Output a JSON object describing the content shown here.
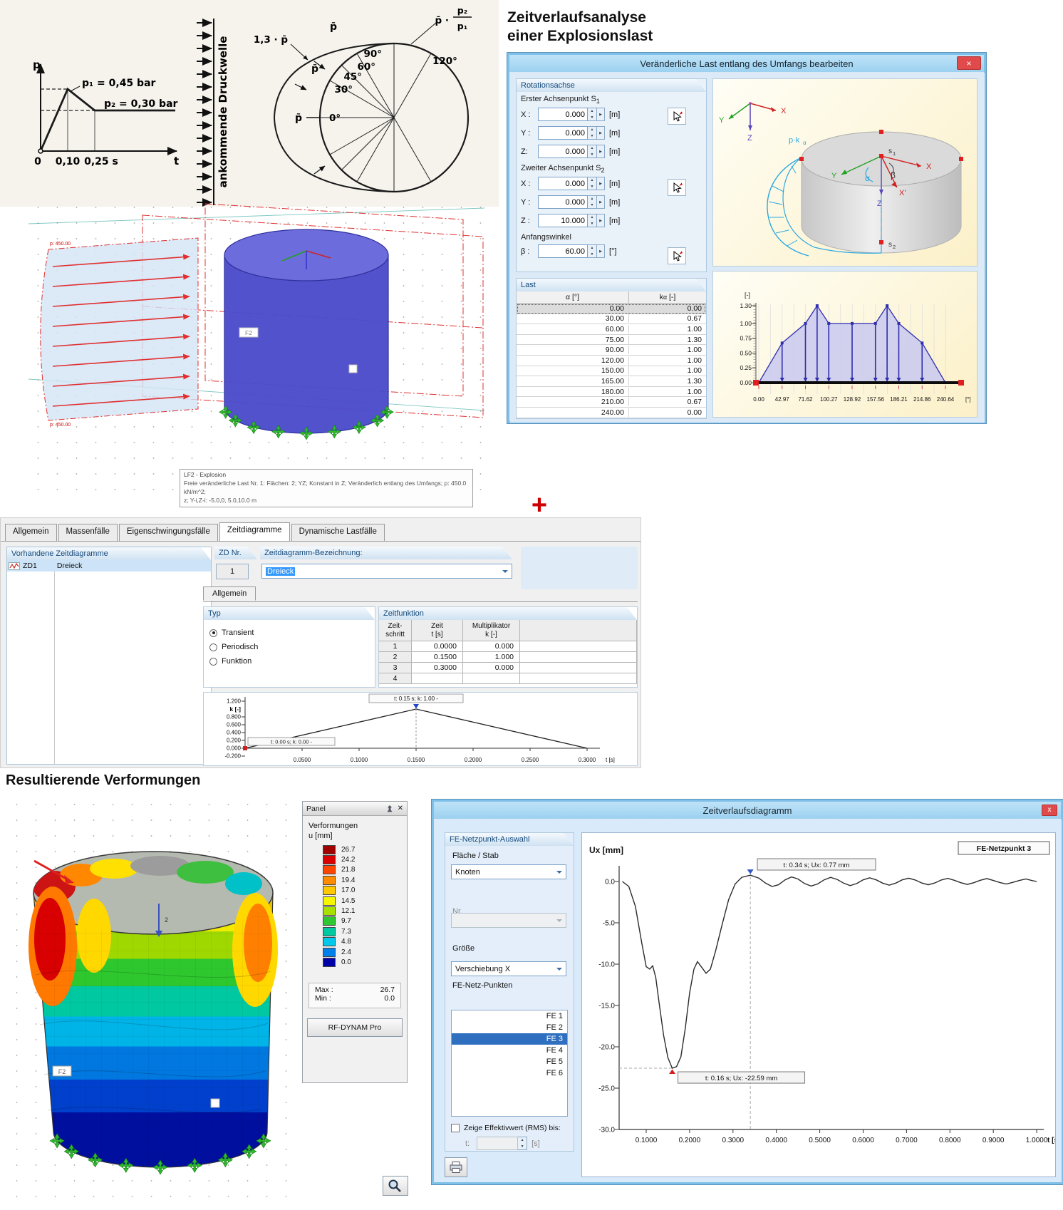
{
  "scan": {
    "p_axis": "p",
    "t_axis": "t",
    "zero": "0",
    "t1": "0,10",
    "t2": "0,25 s",
    "p1": "p₁ = 0,45 bar",
    "p2": "p₂ = 0,30 bar",
    "wave": "ankommende Druckwelle",
    "a0": "0°",
    "a30": "30°",
    "a45": "45°",
    "a60": "60°",
    "a90": "90°",
    "a120": "120°",
    "pbar1": "p̄",
    "pbar2": "p̄",
    "pbar3": "p̄",
    "p13": "1,3 · p̄",
    "pfrac_lead": "p̄ ·",
    "frac_num": "p₂",
    "frac_den": "p₁"
  },
  "headline": {
    "line1": "Zeitverlaufsanalyse",
    "line2": "einer Explosionslast"
  },
  "dialog1": {
    "title": "Veränderliche Last entlang des Umfangs bearbeiten",
    "close": "×",
    "rot": {
      "header": "Rotationsachse",
      "s1_label": "Erster Achsenpunkt S",
      "s1_sub": "1",
      "s2_label": "Zweiter Achsenpunkt S",
      "s2_sub": "2",
      "ang_label": "Anfangswinkel",
      "s1_rows": [
        {
          "l": "X :",
          "v": "0.000",
          "u": "[m]"
        },
        {
          "l": "Y :",
          "v": "0.000",
          "u": "[m]"
        },
        {
          "l": "Z:",
          "v": "0.000",
          "u": "[m]"
        }
      ],
      "s2_rows": [
        {
          "l": "X :",
          "v": "0.000",
          "u": "[m]"
        },
        {
          "l": "Y :",
          "v": "0.000",
          "u": "[m]"
        },
        {
          "l": "Z :",
          "v": "10.000",
          "u": "[m]"
        }
      ],
      "beta": {
        "l": "β :",
        "v": "60.00",
        "u": "[°]"
      }
    },
    "last": {
      "header": "Last",
      "col1": "α [°]",
      "col2k": "k",
      "col2sub": "α",
      "col2unit": "[-]",
      "rows": [
        [
          "0.00",
          "0.00"
        ],
        [
          "30.00",
          "0.67"
        ],
        [
          "60.00",
          "1.00"
        ],
        [
          "75.00",
          "1.30"
        ],
        [
          "90.00",
          "1.00"
        ],
        [
          "120.00",
          "1.00"
        ],
        [
          "150.00",
          "1.00"
        ],
        [
          "165.00",
          "1.30"
        ],
        [
          "180.00",
          "1.00"
        ],
        [
          "210.00",
          "0.67"
        ],
        [
          "240.00",
          "0.00"
        ]
      ]
    },
    "ill": {
      "x": "X",
      "y": "Y",
      "z": "Z",
      "pk": "p·k",
      "pksub": "α",
      "s": "s",
      "s1sub": "1",
      "s2sub": "2",
      "alpha": "α",
      "beta": "β",
      "xp": "X'",
      "z2": "Z"
    },
    "chart": {
      "unit": "[-]",
      "yticks": [
        [
          "1.30",
          1.3
        ],
        [
          "1.00",
          1.0
        ],
        [
          "0.75",
          0.75
        ],
        [
          "0.50",
          0.5
        ],
        [
          "0.25",
          0.25
        ],
        [
          "0.00",
          0
        ]
      ],
      "xlabels": [
        "0.00",
        "42.97",
        "71.62",
        "100.27",
        "128.92",
        "157.56",
        "186.21",
        "214.86",
        "240.64"
      ],
      "xunit": "[°]",
      "points": [
        [
          0,
          0
        ],
        [
          30,
          0.67
        ],
        [
          60,
          1
        ],
        [
          75,
          1.3
        ],
        [
          90,
          1
        ],
        [
          120,
          1
        ],
        [
          150,
          1
        ],
        [
          165,
          1.3
        ],
        [
          180,
          1
        ],
        [
          210,
          0.67
        ],
        [
          240,
          0
        ]
      ]
    }
  },
  "model1": {
    "p_label": "p: 450.00",
    "f2": "F2",
    "tip1": "LF2 - Explosion",
    "tip2": "Freie veränderliche Last Nr. 1: Flächen: 2; YZ; Konstant in Z; Veränderlich entlang des Umfangs; p: 450.0 kN/m^2;",
    "tip3": "z; Y-i,Z-i: -5.0,0, 5.0,10.0 m"
  },
  "plus": "+",
  "dialog2": {
    "tabs": [
      "Allgemein",
      "Massenfälle",
      "Eigenschwingungsfälle",
      "Zeitdiagramme",
      "Dynamische Lastfälle"
    ],
    "active_tab": 3,
    "list_header": "Vorhandene Zeitdiagramme",
    "item_id": "ZD1",
    "item_name": "Dreieck",
    "zdnr_label": "ZD Nr.",
    "zdnr_value": "1",
    "bez_label": "Zeitdiagramm-Bezeichnung:",
    "bez_value": "Dreieck",
    "subtab": "Allgemein",
    "typ": {
      "header": "Typ",
      "options": [
        "Transient",
        "Periodisch",
        "Funktion"
      ],
      "selected": 0
    },
    "zf": {
      "header": "Zeitfunktion",
      "h0a": "Zeit-",
      "h0b": "schritt",
      "h1a": "Zeit",
      "h1b": "t [s]",
      "h2a": "Multiplikator",
      "h2b": "k [-]",
      "rows": [
        [
          "1",
          "0.0000",
          "0.000"
        ],
        [
          "2",
          "0.1500",
          "1.000"
        ],
        [
          "3",
          "0.3000",
          "0.000"
        ],
        [
          "4",
          "",
          ""
        ]
      ]
    },
    "chart": {
      "ylabel": "k [-]",
      "yticks": [
        [
          "1.200",
          1.2
        ],
        [
          "0.800",
          0.8
        ],
        [
          "0.600",
          0.6
        ],
        [
          "0.400",
          0.4
        ],
        [
          "0.200",
          0.2
        ],
        [
          "0.000",
          0
        ],
        [
          "-0.200",
          -0.2
        ]
      ],
      "xlabels": [
        [
          "0.0500",
          0.05
        ],
        [
          "0.1000",
          0.1
        ],
        [
          "0.1500",
          0.15
        ],
        [
          "0.2000",
          0.2
        ],
        [
          "0.2500",
          0.25
        ],
        [
          "0.3000",
          0.3
        ]
      ],
      "xunit": "t [s]",
      "points": [
        [
          0,
          0
        ],
        [
          0.15,
          1
        ],
        [
          0.3,
          0
        ]
      ],
      "ann_peak": "t: 0.15 s; k: 1.00 -",
      "ann_origin": "t: 0.00 s; k: 0.00 -"
    }
  },
  "heading2": "Resultierende Verformungen",
  "panel": {
    "title": "Panel",
    "group": "Verformungen",
    "unit": "u [mm]",
    "values": [
      "26.7",
      "24.2",
      "21.8",
      "19.4",
      "17.0",
      "14.5",
      "12.1",
      "9.7",
      "7.3",
      "4.8",
      "2.4",
      "0.0"
    ],
    "colors": [
      "#A00000",
      "#D80000",
      "#FF4500",
      "#FF8C00",
      "#FFC800",
      "#F6F600",
      "#A8E000",
      "#30C830",
      "#00C8A0",
      "#00C8E8",
      "#0080E8",
      "#0000A8"
    ],
    "max_label": "Max :",
    "max_value": "26.7",
    "min_label": "Min :",
    "min_value": "0.0",
    "button": "RF-DYNAM Pro"
  },
  "dialog3": {
    "title": "Zeitverlaufsdiagramm",
    "close": "x",
    "group": "FE-Netzpunkt-Auswahl",
    "flaeche_label": "Fläche / Stab",
    "flaeche_value": "Knoten",
    "nr_label": "Nr.",
    "groesse_label": "Größe",
    "groesse_value": "Verschiebung X",
    "list_label": "FE-Netz-Punkten",
    "fe_items": [
      "FE 1",
      "FE 2",
      "FE 3",
      "FE 4",
      "FE 5",
      "FE 6"
    ],
    "fe_selected": 2,
    "rms_label": "Zeige Effektivwert (RMS) bis:",
    "t_label": "t:",
    "t_unit": "[s]",
    "chart": {
      "ylabel": "Ux [mm]",
      "series": "FE-Netzpunkt 3",
      "yticks": [
        [
          "0.0",
          0
        ],
        [
          "-5.0",
          -5
        ],
        [
          "-10.0",
          -10
        ],
        [
          "-15.0",
          -15
        ],
        [
          "-20.0",
          -20
        ],
        [
          "-25.0",
          -25
        ],
        [
          "-30.0",
          -30
        ]
      ],
      "xlabels": [
        [
          "0.1000",
          0.1
        ],
        [
          "0.2000",
          0.2
        ],
        [
          "0.3000",
          0.3
        ],
        [
          "0.4000",
          0.4
        ],
        [
          "0.5000",
          0.5
        ],
        [
          "0.6000",
          0.6
        ],
        [
          "0.7000",
          0.7
        ],
        [
          "0.8000",
          0.8
        ],
        [
          "0.9000",
          0.9
        ],
        [
          "1.0000",
          1.0
        ]
      ],
      "xunit": "t [s]",
      "ann_max": "t: 0.34 s; Ux: 0.77 mm",
      "ann_min": "t: 0.16 s; Ux: -22.59 mm",
      "max_point": [
        0.34,
        0.77
      ],
      "min_point": [
        0.16,
        -22.59
      ],
      "points": [
        [
          0.045,
          0
        ],
        [
          0.06,
          -0.6
        ],
        [
          0.075,
          -3
        ],
        [
          0.09,
          -7.5
        ],
        [
          0.1,
          -10.3
        ],
        [
          0.108,
          -10.6
        ],
        [
          0.115,
          -10.2
        ],
        [
          0.122,
          -11.6
        ],
        [
          0.13,
          -14.8
        ],
        [
          0.14,
          -18.6
        ],
        [
          0.15,
          -21.3
        ],
        [
          0.16,
          -22.59
        ],
        [
          0.17,
          -22.4
        ],
        [
          0.18,
          -21.2
        ],
        [
          0.19,
          -17.8
        ],
        [
          0.2,
          -13.5
        ],
        [
          0.21,
          -10.6
        ],
        [
          0.218,
          -9.7
        ],
        [
          0.228,
          -10.4
        ],
        [
          0.238,
          -11.1
        ],
        [
          0.248,
          -10.6
        ],
        [
          0.26,
          -8.4
        ],
        [
          0.275,
          -5.2
        ],
        [
          0.29,
          -2.2
        ],
        [
          0.305,
          -0.3
        ],
        [
          0.32,
          0.5
        ],
        [
          0.34,
          0.77
        ],
        [
          0.36,
          0.4
        ],
        [
          0.375,
          -0.2
        ],
        [
          0.39,
          -0.6
        ],
        [
          0.405,
          -0.4
        ],
        [
          0.42,
          0.2
        ],
        [
          0.435,
          0.55
        ],
        [
          0.45,
          0.3
        ],
        [
          0.465,
          -0.25
        ],
        [
          0.48,
          -0.55
        ],
        [
          0.495,
          -0.3
        ],
        [
          0.51,
          0.2
        ],
        [
          0.525,
          0.5
        ],
        [
          0.54,
          0.25
        ],
        [
          0.555,
          -0.2
        ],
        [
          0.57,
          -0.5
        ],
        [
          0.585,
          -0.25
        ],
        [
          0.6,
          0.2
        ],
        [
          0.615,
          0.45
        ],
        [
          0.63,
          0.2
        ],
        [
          0.645,
          -0.2
        ],
        [
          0.66,
          -0.45
        ],
        [
          0.675,
          -0.2
        ],
        [
          0.69,
          0.2
        ],
        [
          0.705,
          0.4
        ],
        [
          0.72,
          0.18
        ],
        [
          0.735,
          -0.18
        ],
        [
          0.75,
          -0.4
        ],
        [
          0.765,
          -0.18
        ],
        [
          0.78,
          0.18
        ],
        [
          0.795,
          0.38
        ],
        [
          0.81,
          0.15
        ],
        [
          0.825,
          -0.15
        ],
        [
          0.84,
          -0.35
        ],
        [
          0.855,
          -0.15
        ],
        [
          0.87,
          0.15
        ],
        [
          0.885,
          0.35
        ],
        [
          0.9,
          0.12
        ],
        [
          0.915,
          -0.12
        ],
        [
          0.93,
          -0.3
        ],
        [
          0.945,
          -0.1
        ],
        [
          0.96,
          0.12
        ],
        [
          0.975,
          0.3
        ],
        [
          0.99,
          0.1
        ],
        [
          1.0,
          0
        ]
      ]
    }
  }
}
